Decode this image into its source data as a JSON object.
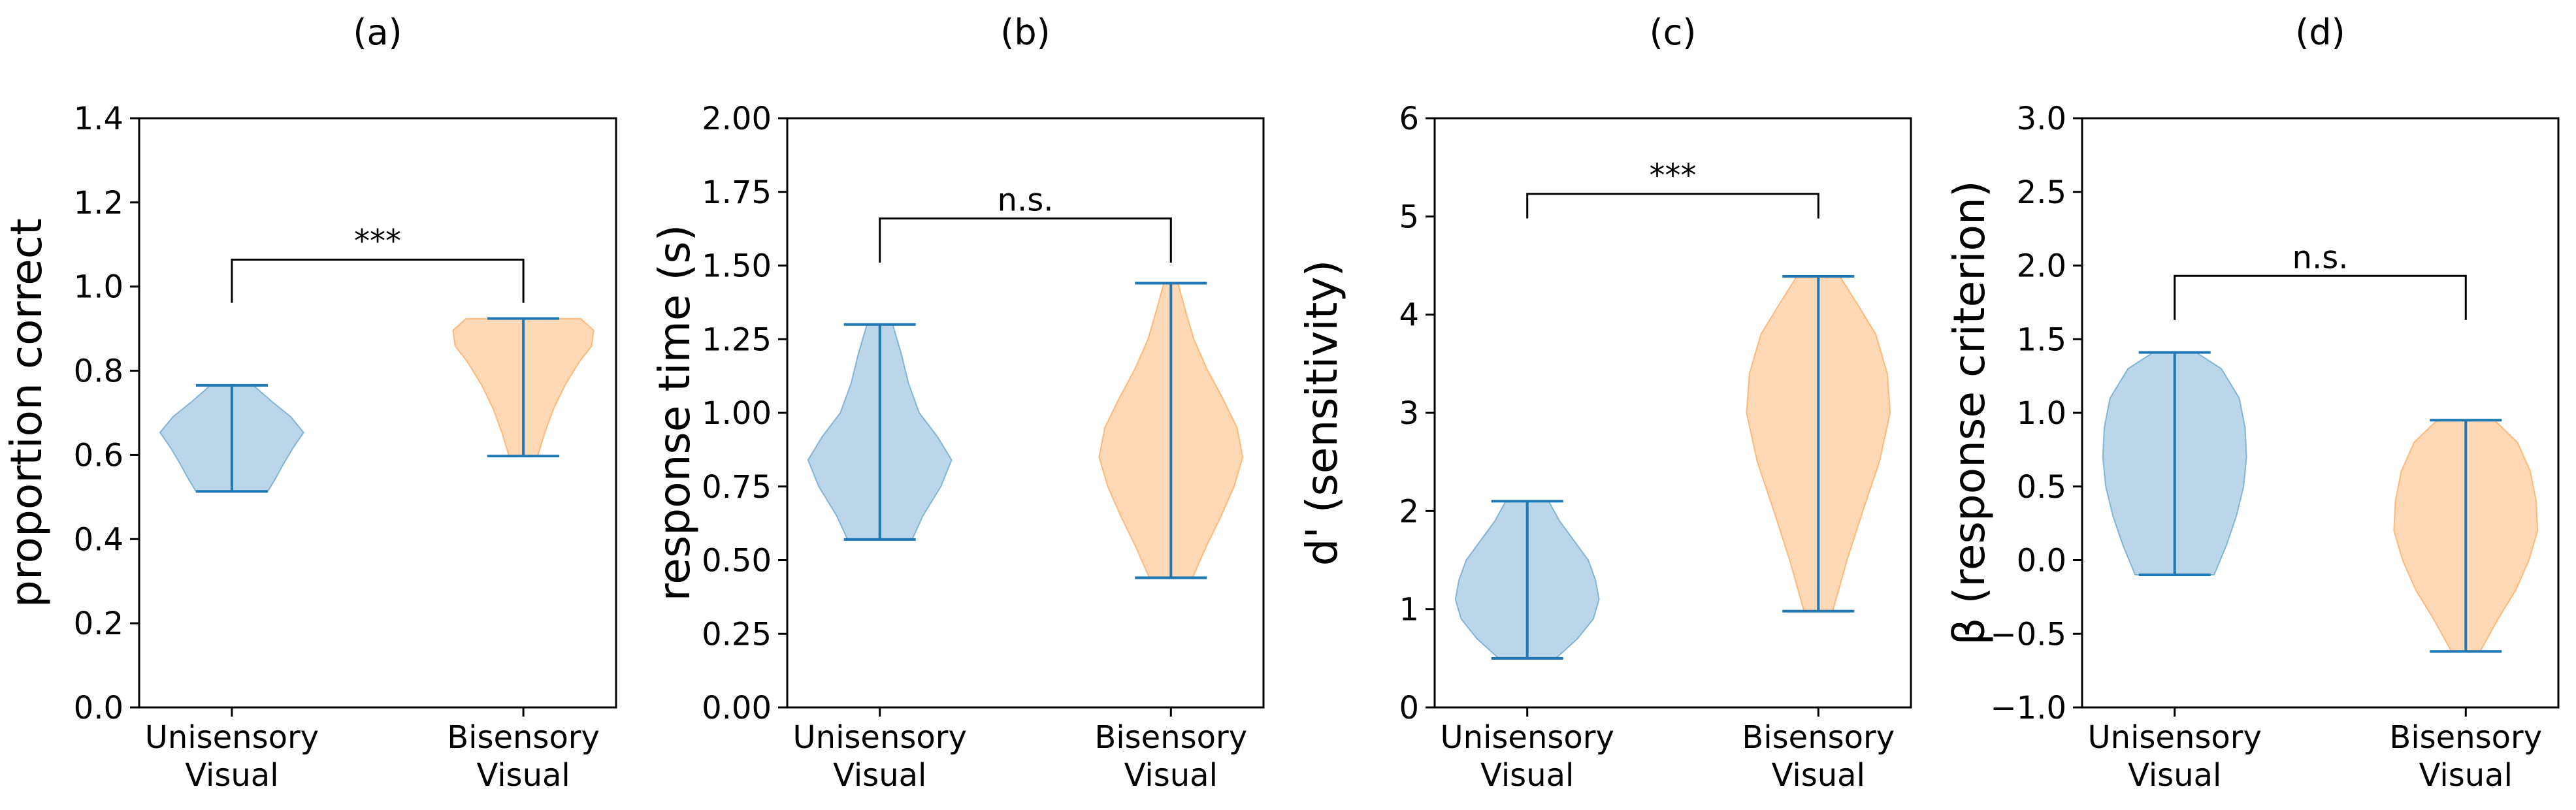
{
  "colors": {
    "series_a": "#1f77b4",
    "series_b": "#ff7f0e",
    "axis": "#000000"
  },
  "chart_data": [
    {
      "type": "violin",
      "title": "(a)",
      "ylabel": "proportion correct",
      "ylim": [
        0,
        1.5
      ],
      "yticks": [
        "0.0",
        "0.2",
        "0.4",
        "0.6",
        "0.8",
        "1.0",
        "1.2",
        "1.4"
      ],
      "categories": [
        [
          "Unisensory",
          "Visual"
        ],
        [
          "Bisensory",
          "Visual"
        ]
      ],
      "series": [
        {
          "min": 0.55,
          "max": 0.82,
          "profile": [
            [
              0.55,
              0.5
            ],
            [
              0.58,
              0.6
            ],
            [
              0.62,
              0.72
            ],
            [
              0.66,
              0.85
            ],
            [
              0.7,
              1.0
            ],
            [
              0.74,
              0.82
            ],
            [
              0.78,
              0.55
            ],
            [
              0.82,
              0.3
            ]
          ]
        },
        {
          "min": 0.64,
          "max": 0.99,
          "profile": [
            [
              0.64,
              0.2
            ],
            [
              0.7,
              0.3
            ],
            [
              0.76,
              0.42
            ],
            [
              0.82,
              0.58
            ],
            [
              0.88,
              0.78
            ],
            [
              0.92,
              0.95
            ],
            [
              0.96,
              0.98
            ],
            [
              0.99,
              0.8
            ]
          ]
        }
      ],
      "significance": {
        "label": "***",
        "y": 1.14,
        "drop_left": 1.03,
        "drop_right": 1.03
      }
    },
    {
      "type": "violin",
      "title": "(b)",
      "ylabel": "response time (s)",
      "ylim": [
        0,
        2.0
      ],
      "yticks": [
        "0.00",
        "0.25",
        "0.50",
        "0.75",
        "1.00",
        "1.25",
        "1.50",
        "1.75",
        "2.00"
      ],
      "categories": [
        [
          "Unisensory",
          "Visual"
        ],
        [
          "Bisensory",
          "Visual"
        ]
      ],
      "series": [
        {
          "min": 0.57,
          "max": 1.3,
          "profile": [
            [
              0.57,
              0.45
            ],
            [
              0.65,
              0.6
            ],
            [
              0.75,
              0.85
            ],
            [
              0.84,
              1.0
            ],
            [
              0.92,
              0.8
            ],
            [
              1.0,
              0.55
            ],
            [
              1.1,
              0.4
            ],
            [
              1.2,
              0.3
            ],
            [
              1.3,
              0.18
            ]
          ]
        },
        {
          "min": 0.44,
          "max": 1.44,
          "profile": [
            [
              0.44,
              0.3
            ],
            [
              0.55,
              0.5
            ],
            [
              0.65,
              0.7
            ],
            [
              0.75,
              0.88
            ],
            [
              0.85,
              1.0
            ],
            [
              0.95,
              0.92
            ],
            [
              1.05,
              0.72
            ],
            [
              1.15,
              0.5
            ],
            [
              1.25,
              0.32
            ],
            [
              1.35,
              0.2
            ],
            [
              1.44,
              0.1
            ]
          ]
        }
      ],
      "significance": {
        "label": "n.s.",
        "y": 1.66,
        "drop_left": 1.51,
        "drop_right": 1.51
      }
    },
    {
      "type": "violin",
      "title": "(c)",
      "ylabel": "d' (sensitivity)",
      "ylim": [
        0,
        6
      ],
      "yticks": [
        "0",
        "1",
        "2",
        "3",
        "4",
        "5",
        "6"
      ],
      "categories": [
        [
          "Unisensory",
          "Visual"
        ],
        [
          "Bisensory",
          "Visual"
        ]
      ],
      "series": [
        {
          "min": 0.5,
          "max": 2.1,
          "profile": [
            [
              0.5,
              0.4
            ],
            [
              0.7,
              0.7
            ],
            [
              0.9,
              0.92
            ],
            [
              1.1,
              1.0
            ],
            [
              1.3,
              0.95
            ],
            [
              1.5,
              0.85
            ],
            [
              1.7,
              0.65
            ],
            [
              1.9,
              0.45
            ],
            [
              2.1,
              0.3
            ]
          ]
        },
        {
          "min": 0.98,
          "max": 4.39,
          "profile": [
            [
              0.98,
              0.2
            ],
            [
              1.5,
              0.4
            ],
            [
              2.0,
              0.62
            ],
            [
              2.5,
              0.85
            ],
            [
              3.0,
              1.0
            ],
            [
              3.4,
              0.96
            ],
            [
              3.8,
              0.8
            ],
            [
              4.1,
              0.55
            ],
            [
              4.39,
              0.3
            ]
          ]
        }
      ],
      "significance": {
        "label": "***",
        "y": 5.23,
        "drop_left": 4.98,
        "drop_right": 4.98
      }
    },
    {
      "type": "violin",
      "title": "(d)",
      "ylabel": "β (response criterion)",
      "ylim": [
        -1.0,
        3.0
      ],
      "yticks": [
        "−1.0",
        "−0.5",
        "0.0",
        "0.5",
        "1.0",
        "1.5",
        "2.0",
        "2.5",
        "3.0"
      ],
      "categories": [
        [
          "Unisensory",
          "Visual"
        ],
        [
          "Bisensory",
          "Visual"
        ]
      ],
      "series": [
        {
          "min": -0.1,
          "max": 1.41,
          "profile": [
            [
              -0.1,
              0.55
            ],
            [
              0.1,
              0.72
            ],
            [
              0.3,
              0.86
            ],
            [
              0.5,
              0.96
            ],
            [
              0.7,
              1.0
            ],
            [
              0.9,
              0.98
            ],
            [
              1.1,
              0.9
            ],
            [
              1.3,
              0.65
            ],
            [
              1.41,
              0.3
            ]
          ]
        },
        {
          "min": -0.62,
          "max": 0.95,
          "profile": [
            [
              -0.62,
              0.2
            ],
            [
              -0.4,
              0.45
            ],
            [
              -0.2,
              0.7
            ],
            [
              0.0,
              0.88
            ],
            [
              0.2,
              1.0
            ],
            [
              0.4,
              0.98
            ],
            [
              0.6,
              0.9
            ],
            [
              0.8,
              0.72
            ],
            [
              0.95,
              0.4
            ]
          ]
        }
      ],
      "significance": {
        "label": "n.s.",
        "y": 1.93,
        "drop_left": 1.63,
        "drop_right": 1.63
      }
    }
  ]
}
